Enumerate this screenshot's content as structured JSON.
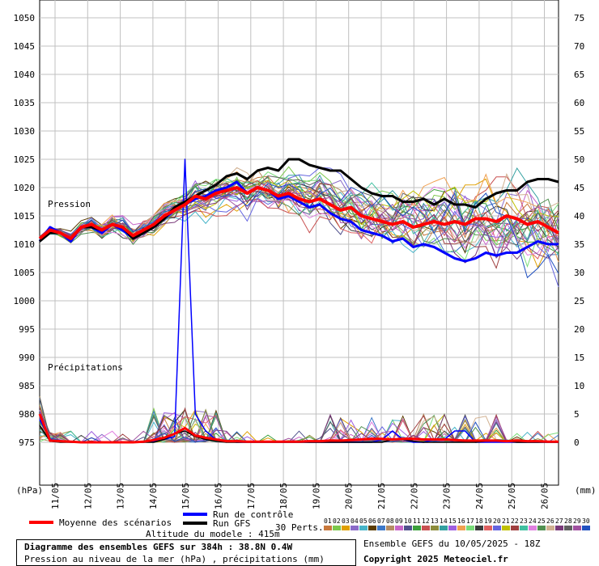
{
  "chart_data": {
    "type": "line",
    "left_axis": {
      "unit": "(hPa)",
      "ticks": [
        1050,
        1045,
        1040,
        1035,
        1030,
        1025,
        1020,
        1015,
        1010,
        1005,
        1000,
        995,
        990,
        985,
        980,
        975
      ]
    },
    "right_axis": {
      "unit": "(mm)",
      "ticks": [
        75,
        70,
        65,
        60,
        55,
        50,
        45,
        40,
        35,
        30,
        25,
        20,
        15,
        10,
        5,
        0
      ]
    },
    "x_labels": [
      "11/05",
      "12/05",
      "13/05",
      "14/05",
      "15/05",
      "16/05",
      "17/05",
      "18/05",
      "19/05",
      "20/05",
      "21/05",
      "22/05",
      "23/05",
      "24/05",
      "25/05",
      "26/05"
    ],
    "panel_labels": {
      "pressure": "Pression",
      "precip": "Précipitations"
    },
    "series": [
      {
        "name": "Moyenne des scénarios",
        "color": "#ff0000",
        "values": [
          1011,
          1012.5,
          1012,
          1011,
          1013,
          1013.5,
          1012.5,
          1013.5,
          1013,
          1011.5,
          1012.5,
          1013.5,
          1015,
          1016,
          1017,
          1018.5,
          1018,
          1019,
          1019.5,
          1020,
          1019,
          1020,
          1019.5,
          1018.5,
          1019,
          1018,
          1017.5,
          1018,
          1017,
          1016,
          1016.5,
          1015,
          1014.5,
          1014,
          1013.5,
          1014,
          1013,
          1013.5,
          1014,
          1013.5,
          1014,
          1013.5,
          1014.5,
          1014.5,
          1014,
          1015,
          1014.5,
          1013.5,
          1014,
          1013,
          1012
        ]
      },
      {
        "name": "Run de contrôle",
        "color": "#0000ff",
        "values": [
          1010.5,
          1013,
          1012,
          1010.5,
          1013,
          1013,
          1012,
          1013.5,
          1012.5,
          1011,
          1012,
          1013,
          1014.5,
          1016,
          1017,
          1018,
          1018.5,
          1019.5,
          1020,
          1021,
          1019,
          1020,
          1019.5,
          1018,
          1018.5,
          1017.5,
          1016.5,
          1017,
          1015.5,
          1014.5,
          1014,
          1012.5,
          1012,
          1011.5,
          1010.5,
          1011,
          1009.5,
          1010,
          1009.5,
          1008.5,
          1007.5,
          1007,
          1007.5,
          1008.5,
          1008,
          1008.5,
          1008.5,
          1009.5,
          1010.5,
          1010,
          1010
        ]
      },
      {
        "name": "Run GFS",
        "color": "#000000",
        "values": [
          1010.5,
          1012,
          1012,
          1011,
          1013,
          1013,
          1012.5,
          1013.5,
          1013,
          1011,
          1012,
          1013,
          1014.5,
          1016.5,
          1017.5,
          1018.5,
          1019.5,
          1020.5,
          1022,
          1022.5,
          1021.5,
          1023,
          1023.5,
          1023,
          1025,
          1025,
          1024,
          1023.5,
          1023,
          1023,
          1021.5,
          1020,
          1019,
          1018.5,
          1018.5,
          1017.5,
          1017.5,
          1018,
          1017,
          1018,
          1017,
          1017,
          1016.5,
          1018,
          1019,
          1019.5,
          1019.5,
          1021,
          1021.5,
          1021.5,
          1021
        ]
      }
    ],
    "precip_series": [
      {
        "name": "Moyenne des scénarios",
        "color": "#ff0000",
        "values": [
          5,
          0.3,
          0.2,
          0.1,
          0,
          0,
          0,
          0,
          0,
          0,
          0.1,
          0.4,
          0.8,
          1.5,
          2.5,
          1.2,
          0.8,
          0.5,
          0.2,
          0.2,
          0.1,
          0.1,
          0.1,
          0.1,
          0.1,
          0.1,
          0.2,
          0.2,
          0.3,
          0.3,
          0.4,
          0.5,
          0.6,
          0.6,
          0.5,
          0.6,
          0.6,
          0.5,
          0.5,
          0.5,
          0.4,
          0.3,
          0.3,
          0.3,
          0.3,
          0.2,
          0.3,
          0.2,
          0.2,
          0.1,
          0.1
        ]
      },
      {
        "name": "Run de contrôle",
        "color": "#0000ff",
        "values": [
          4,
          0.5,
          0.2,
          0,
          0,
          0,
          0,
          0,
          0,
          0,
          0,
          0.2,
          0.5,
          1,
          50,
          5,
          2,
          0.5,
          0.2,
          0,
          0,
          0,
          0,
          0,
          0,
          0,
          0,
          0,
          0,
          0,
          0,
          0,
          0,
          0.5,
          2,
          0.5,
          0,
          0,
          0.5,
          0.5,
          2,
          2,
          0,
          0,
          0,
          0,
          0,
          0,
          0,
          0,
          0
        ]
      },
      {
        "name": "Run GFS",
        "color": "#000000",
        "values": [
          3,
          0.2,
          0,
          0,
          0,
          0,
          0,
          0,
          0,
          0,
          0,
          0,
          0.5,
          1.5,
          2,
          1,
          0.5,
          0.2,
          0,
          0,
          0,
          0,
          0,
          0,
          0,
          0,
          0,
          0,
          0,
          0,
          0,
          0,
          0,
          0,
          0.5,
          0.5,
          0.2,
          0,
          0,
          0,
          0,
          0,
          0,
          0.2,
          0.3,
          0.2,
          0,
          0,
          0,
          0,
          0
        ]
      }
    ],
    "footer": {
      "title": "Diagramme des ensembles GEFS sur 384h : 38.8N 0.4W",
      "subtitle": "Pression au niveau de la mer (hPa) , précipitations (mm)",
      "altitude": "Altitude du modele : 415m",
      "perts_label": "30 Perts.",
      "run_info": "Ensemble GEFS du 10/05/2025 - 18Z",
      "copyright": "Copyright 2025 Meteociel.fr"
    },
    "pert_numbers": [
      "01",
      "02",
      "03",
      "04",
      "05",
      "06",
      "07",
      "08",
      "09",
      "10",
      "11",
      "12",
      "13",
      "14",
      "15",
      "16",
      "17",
      "18",
      "19",
      "20",
      "21",
      "22",
      "23",
      "24",
      "25",
      "26",
      "27",
      "28",
      "29",
      "30"
    ],
    "pert_colors": [
      "#c8783c",
      "#7cc84c",
      "#e0a000",
      "#8a6ac8",
      "#46b4c8",
      "#5a3c00",
      "#3c78c8",
      "#b48c64",
      "#c864c8",
      "#50508c",
      "#3ca03c",
      "#c85050",
      "#8c8c3c",
      "#32a0a0",
      "#9f5fdf",
      "#f0a050",
      "#78dc78",
      "#3c3c3c",
      "#e06060",
      "#6464e0",
      "#c0c000",
      "#a04040",
      "#40c0a0",
      "#e080e0",
      "#509050",
      "#d0b090",
      "#7a3a7a",
      "#606060",
      "#a050a0",
      "#2050c0"
    ]
  }
}
